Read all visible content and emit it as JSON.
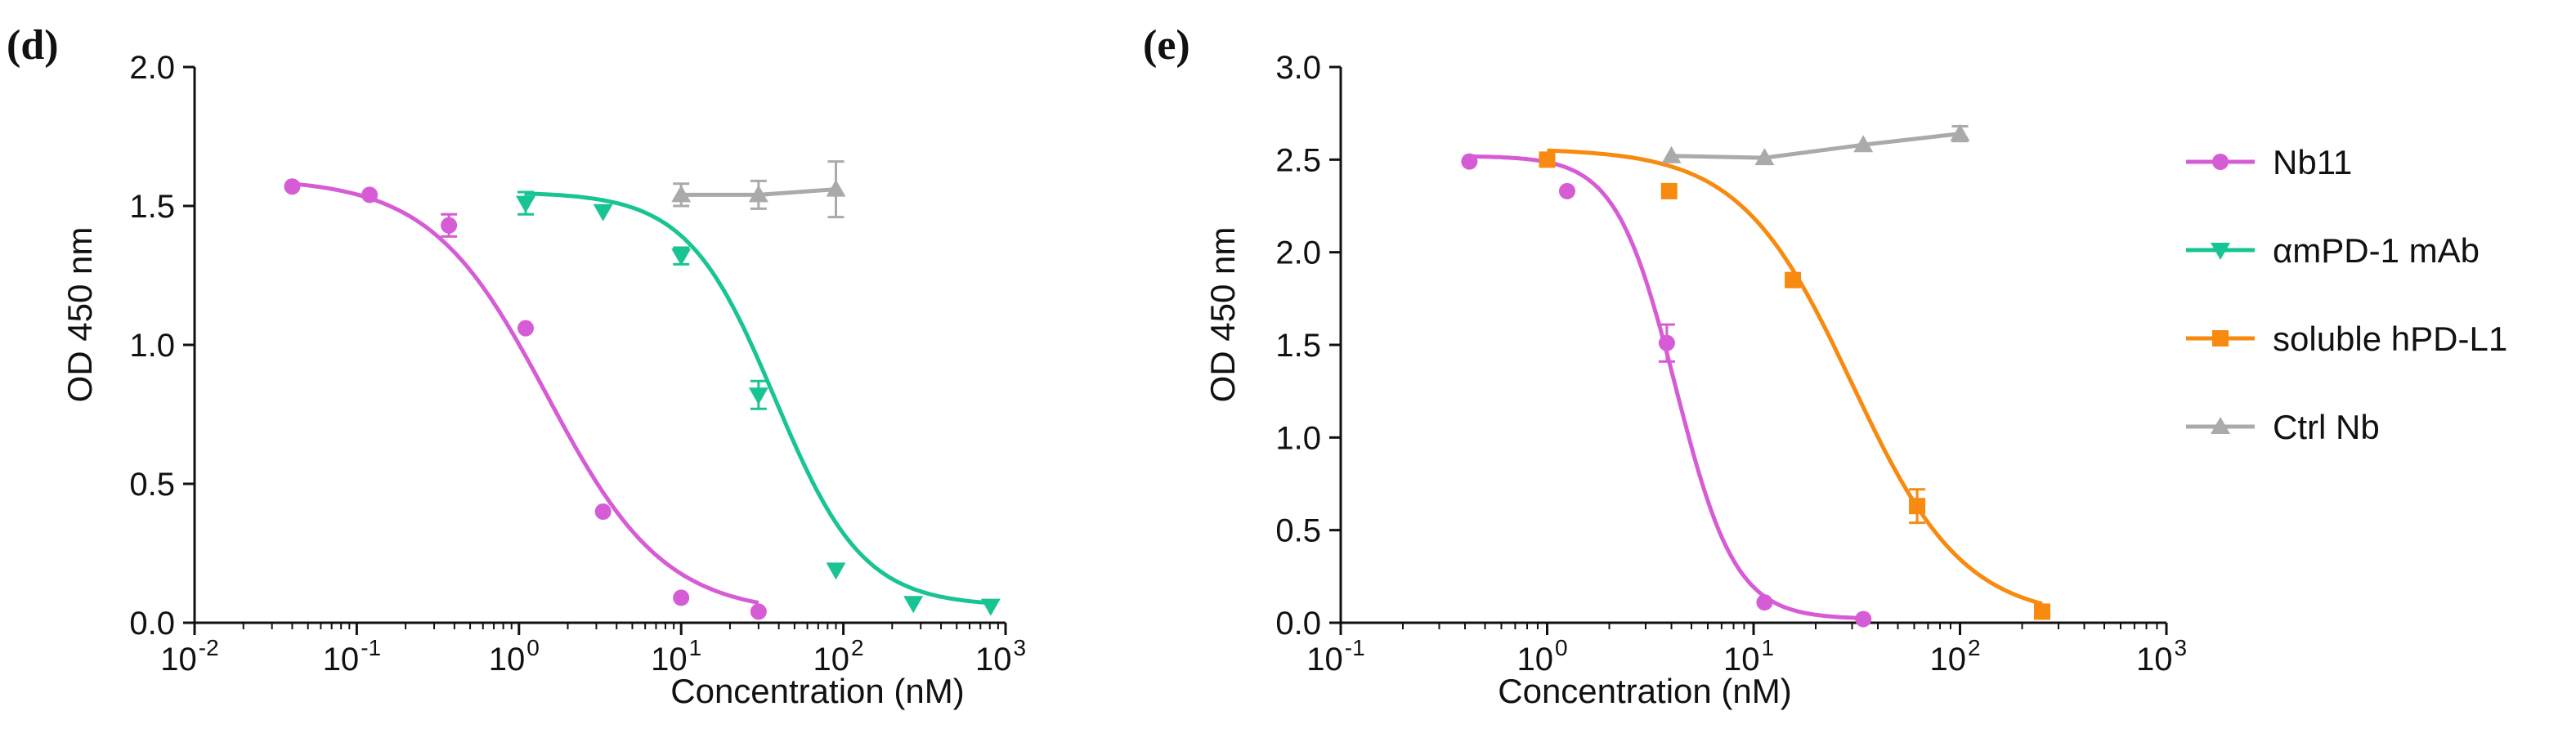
{
  "figure": {
    "background": "#ffffff",
    "axis_color": "#111111"
  },
  "chart_data": [
    {
      "panel_label": "(d)",
      "type": "line",
      "x_scale": "log",
      "xlabel": "Concentration (nM)",
      "ylabel": "OD 450 nm",
      "xlim": [
        0.01,
        1000
      ],
      "ylim": [
        0,
        2.0
      ],
      "x_ticks": [
        {
          "value": 0.01,
          "base": "10",
          "exp": "-2"
        },
        {
          "value": 0.1,
          "base": "10",
          "exp": "-1"
        },
        {
          "value": 1,
          "base": "10",
          "exp": "0"
        },
        {
          "value": 10,
          "base": "10",
          "exp": "1"
        },
        {
          "value": 100,
          "base": "10",
          "exp": "2"
        },
        {
          "value": 1000,
          "base": "10",
          "exp": "3"
        }
      ],
      "y_ticks": [
        {
          "value": 0.0,
          "label": "0.0"
        },
        {
          "value": 0.5,
          "label": "0.5"
        },
        {
          "value": 1.0,
          "label": "1.0"
        },
        {
          "value": 1.5,
          "label": "1.5"
        },
        {
          "value": 2.0,
          "label": "2.0"
        }
      ],
      "grid": false,
      "legend": "none",
      "series": [
        {
          "name": "Nb11",
          "color": "#d65cd6",
          "marker": "circle",
          "curve": "sigmoid",
          "fit": {
            "top": 1.6,
            "bottom": 0.03,
            "ec50": 1.5,
            "hill": 1.2
          },
          "x": [
            0.04,
            0.12,
            0.37,
            1.1,
            3.3,
            10,
            30
          ],
          "y": [
            1.57,
            1.54,
            1.43,
            1.06,
            0.4,
            0.09,
            0.04
          ],
          "err": [
            0,
            0,
            0.04,
            0,
            0,
            0,
            0
          ]
        },
        {
          "name": "αmPD-1 mAb",
          "color": "#19c494",
          "marker": "triangle-down",
          "curve": "sigmoid",
          "fit": {
            "top": 1.55,
            "bottom": 0.06,
            "ec50": 38,
            "hill": 1.6
          },
          "x": [
            1.1,
            3.3,
            10,
            30,
            90,
            270,
            810
          ],
          "y": [
            1.51,
            1.48,
            1.32,
            0.82,
            0.19,
            0.07,
            0.06
          ],
          "err": [
            0.04,
            0,
            0.03,
            0.05,
            0,
            0,
            0
          ]
        },
        {
          "name": "Ctrl Nb",
          "color": "#aaaaaa",
          "marker": "triangle-up",
          "curve": "line",
          "x": [
            10,
            30,
            90
          ],
          "y": [
            1.54,
            1.54,
            1.56
          ],
          "err": [
            0.04,
            0.05,
            0.1
          ]
        }
      ]
    },
    {
      "panel_label": "(e)",
      "type": "line",
      "x_scale": "log",
      "xlabel": "Concentration (nM)",
      "ylabel": "OD 450 nm",
      "xlim": [
        0.1,
        1000
      ],
      "ylim": [
        0,
        3.0
      ],
      "x_ticks": [
        {
          "value": 0.1,
          "base": "10",
          "exp": "-1"
        },
        {
          "value": 1,
          "base": "10",
          "exp": "0"
        },
        {
          "value": 10,
          "base": "10",
          "exp": "1"
        },
        {
          "value": 100,
          "base": "10",
          "exp": "2"
        },
        {
          "value": 1000,
          "base": "10",
          "exp": "3"
        }
      ],
      "y_ticks": [
        {
          "value": 0.0,
          "label": "0.0"
        },
        {
          "value": 0.5,
          "label": "0.5"
        },
        {
          "value": 1.0,
          "label": "1.0"
        },
        {
          "value": 1.5,
          "label": "1.5"
        },
        {
          "value": 2.0,
          "label": "2.0"
        },
        {
          "value": 2.5,
          "label": "2.5"
        },
        {
          "value": 3.0,
          "label": "3.0"
        }
      ],
      "grid": false,
      "legend": "right",
      "series": [
        {
          "name": "Nb11",
          "color": "#d65cd6",
          "marker": "circle",
          "curve": "sigmoid",
          "fit": {
            "top": 2.52,
            "bottom": 0.02,
            "ec50": 4.2,
            "hill": 3.0
          },
          "x": [
            0.42,
            1.25,
            3.8,
            11.3,
            34
          ],
          "y": [
            2.49,
            2.33,
            1.51,
            0.11,
            0.02
          ],
          "err": [
            0,
            0,
            0.1,
            0,
            0
          ]
        },
        {
          "name": "αmPD-1 mAb",
          "color": "#19c494",
          "marker": "triangle-down",
          "curve": "none",
          "x": [],
          "y": [],
          "err": []
        },
        {
          "name": "soluble hPD-L1",
          "color": "#f78a0f",
          "marker": "square",
          "curve": "sigmoid",
          "fit": {
            "top": 2.56,
            "bottom": 0.02,
            "ec50": 30,
            "hill": 1.6
          },
          "x": [
            1.0,
            3.9,
            15.5,
            62,
            250
          ],
          "y": [
            2.5,
            2.33,
            1.85,
            0.63,
            0.06
          ],
          "err": [
            0,
            0,
            0,
            0.09,
            0
          ]
        },
        {
          "name": "Ctrl Nb",
          "color": "#aaaaaa",
          "marker": "triangle-up",
          "curve": "line",
          "x": [
            4,
            11.3,
            34,
            100
          ],
          "y": [
            2.52,
            2.51,
            2.58,
            2.64
          ],
          "err": [
            0,
            0,
            0,
            0.04
          ]
        }
      ]
    }
  ]
}
